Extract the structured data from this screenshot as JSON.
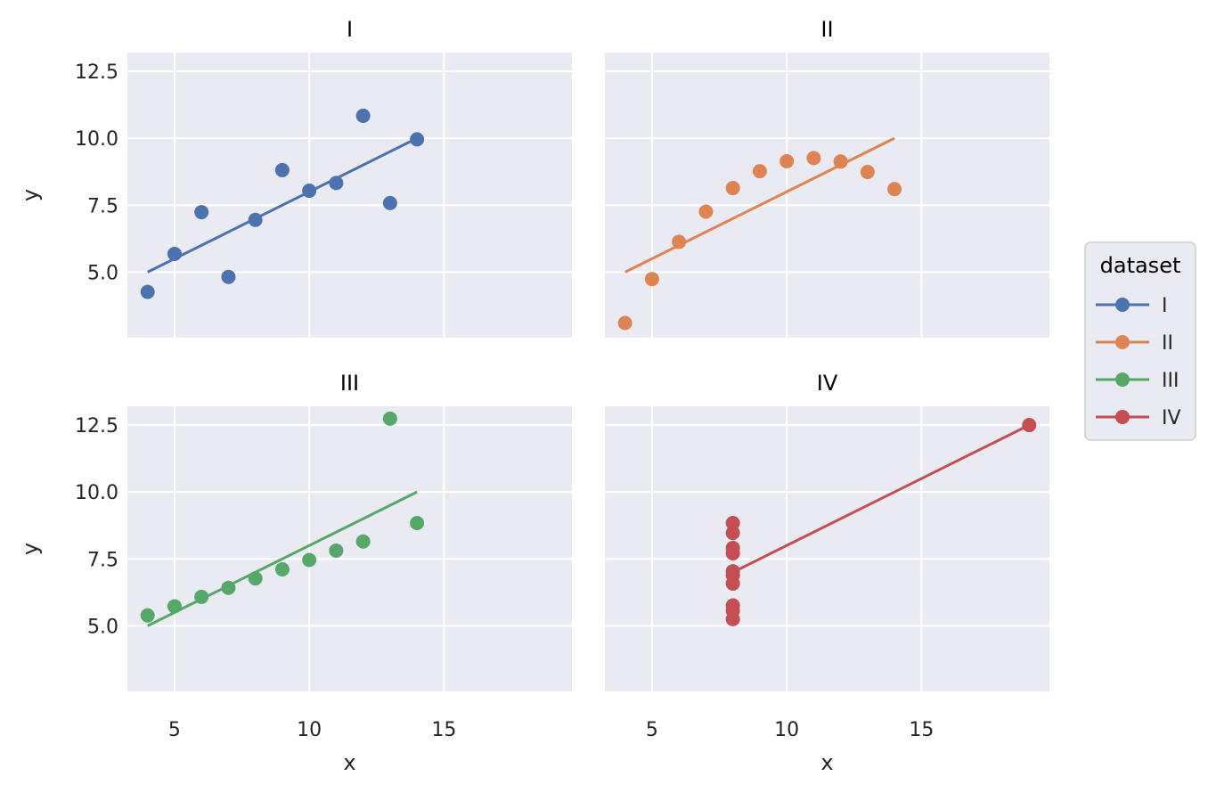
{
  "chart_data": {
    "type": "scatter",
    "layout": "faceted 2x2 grid, shared axes",
    "x_ticks": [
      5,
      10,
      15
    ],
    "y_ticks": [
      5.0,
      7.5,
      10.0,
      12.5
    ],
    "y_tick_labels": [
      "5.0",
      "7.5",
      "10.0",
      "12.5"
    ],
    "xlim": [
      3.25,
      19.75
    ],
    "ylim": [
      2.55,
      13.2
    ],
    "xlabel": "x",
    "ylabel": "y",
    "grid": true,
    "legend": {
      "title": "dataset",
      "placement": "right",
      "entries": [
        {
          "label": "I",
          "color": "#4c72b0"
        },
        {
          "label": "II",
          "color": "#dd8452"
        },
        {
          "label": "III",
          "color": "#55a868"
        },
        {
          "label": "IV",
          "color": "#c44e52"
        }
      ]
    },
    "panels": [
      {
        "title": "I",
        "color": "#4c72b0",
        "points": [
          [
            4,
            4.26
          ],
          [
            5,
            5.68
          ],
          [
            6,
            7.24
          ],
          [
            7,
            4.82
          ],
          [
            8,
            6.95
          ],
          [
            9,
            8.81
          ],
          [
            10,
            8.04
          ],
          [
            11,
            8.33
          ],
          [
            12,
            10.84
          ],
          [
            13,
            7.58
          ],
          [
            14,
            9.96
          ]
        ],
        "fit_line": [
          [
            4,
            5.0
          ],
          [
            14,
            10.0
          ]
        ]
      },
      {
        "title": "II",
        "color": "#dd8452",
        "points": [
          [
            4,
            3.1
          ],
          [
            5,
            4.74
          ],
          [
            6,
            6.13
          ],
          [
            7,
            7.26
          ],
          [
            8,
            8.14
          ],
          [
            9,
            8.77
          ],
          [
            10,
            9.14
          ],
          [
            11,
            9.26
          ],
          [
            12,
            9.13
          ],
          [
            13,
            8.74
          ],
          [
            14,
            8.1
          ]
        ],
        "fit_line": [
          [
            4,
            5.0
          ],
          [
            14,
            10.0
          ]
        ]
      },
      {
        "title": "III",
        "color": "#55a868",
        "points": [
          [
            4,
            5.39
          ],
          [
            5,
            5.73
          ],
          [
            6,
            6.08
          ],
          [
            7,
            6.42
          ],
          [
            8,
            6.77
          ],
          [
            9,
            7.11
          ],
          [
            10,
            7.46
          ],
          [
            11,
            7.81
          ],
          [
            12,
            8.15
          ],
          [
            13,
            12.74
          ],
          [
            14,
            8.84
          ]
        ],
        "fit_line": [
          [
            4,
            5.0
          ],
          [
            14,
            10.0
          ]
        ]
      },
      {
        "title": "IV",
        "color": "#c44e52",
        "points": [
          [
            8,
            5.25
          ],
          [
            8,
            5.56
          ],
          [
            8,
            5.76
          ],
          [
            8,
            6.58
          ],
          [
            8,
            6.89
          ],
          [
            8,
            7.04
          ],
          [
            8,
            7.71
          ],
          [
            8,
            7.91
          ],
          [
            8,
            8.47
          ],
          [
            8,
            8.84
          ],
          [
            19,
            12.5
          ]
        ],
        "fit_line": [
          [
            8,
            7.0
          ],
          [
            19,
            12.5
          ]
        ]
      }
    ]
  }
}
